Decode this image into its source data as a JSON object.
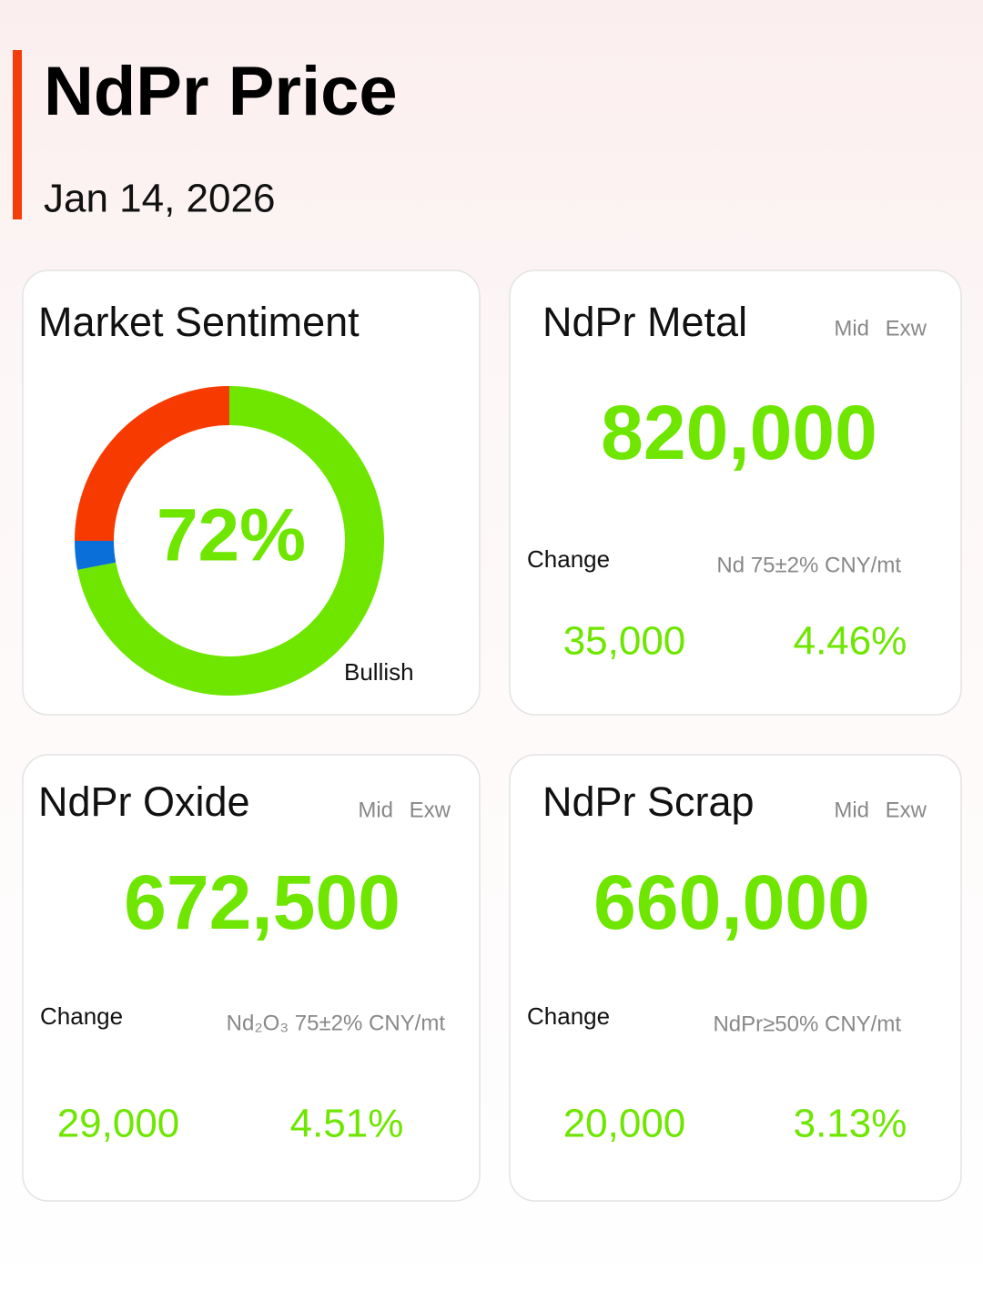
{
  "header": {
    "title": "NdPr Price",
    "date": "Jan 14, 2026"
  },
  "sentiment": {
    "title": "Market Sentiment",
    "value": 72,
    "value_label": "72%",
    "segments": [
      {
        "name": "Bullish",
        "value": 72,
        "color": "#6ee600"
      },
      {
        "value": 3,
        "color": "#0a6fd8"
      },
      {
        "value": 25,
        "color": "#f73b00"
      }
    ]
  },
  "cards": [
    {
      "title": "NdPr Metal",
      "tags": [
        "Mid",
        "Exw"
      ],
      "price": "820,000",
      "change_label": "Change",
      "spec": "Nd 75±2% CNY/mt",
      "change": "35,000",
      "change_pct": "4.46%"
    },
    {
      "title": "NdPr Oxide",
      "tags": [
        "Mid",
        "Exw"
      ],
      "price": "672,500",
      "change_label": "Change",
      "spec": "Nd₂O₃ 75±2% CNY/mt",
      "change": "29,000",
      "change_pct": "4.51%"
    },
    {
      "title": "NdPr Scrap",
      "tags": [
        "Mid",
        "Exw"
      ],
      "price": "660,000",
      "change_label": "Change",
      "spec": "NdPr≥50% CNY/mt",
      "change": "20,000",
      "change_pct": "3.13%"
    }
  ]
}
